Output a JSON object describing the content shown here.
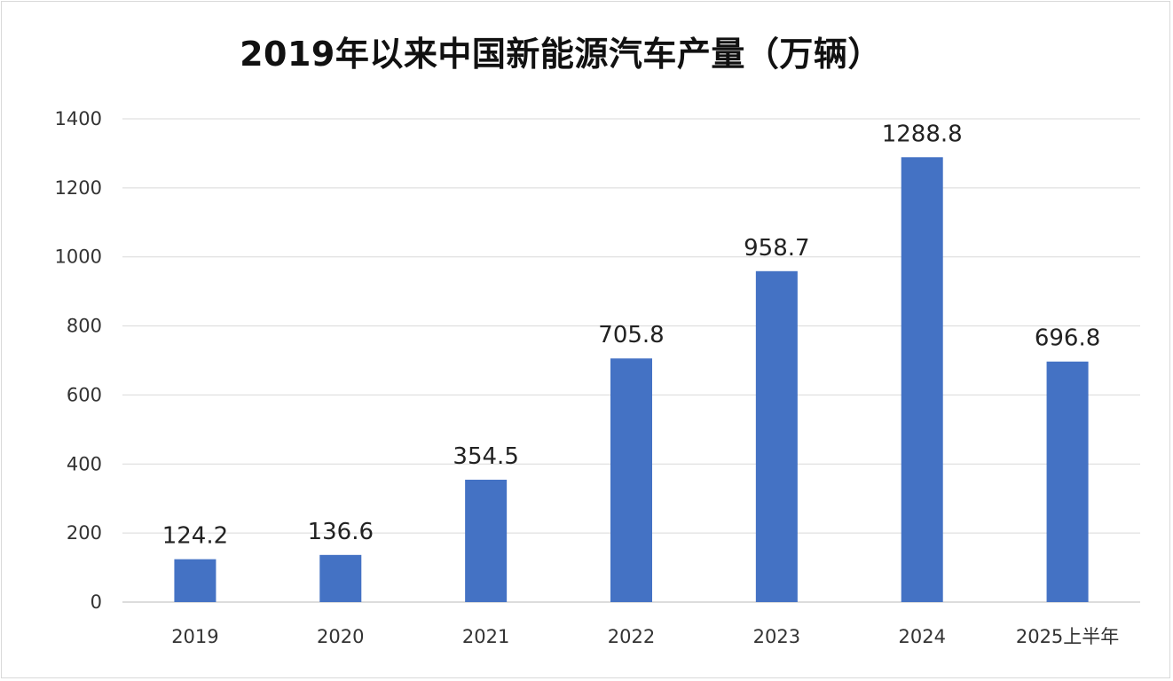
{
  "chart_data": {
    "type": "bar",
    "title": "2019年以来中国新能源汽车产量（万辆）",
    "categories": [
      "2019",
      "2020",
      "2021",
      "2022",
      "2023",
      "2024",
      "2025上半年"
    ],
    "values": [
      124.2,
      136.6,
      354.5,
      705.8,
      958.7,
      1288.8,
      696.8
    ],
    "data_labels": [
      "124.2",
      "136.6",
      "354.5",
      "705.8",
      "958.7",
      "1288.8",
      "696.8"
    ],
    "yticks": [
      "0",
      "200",
      "400",
      "600",
      "800",
      "1000",
      "1200",
      "1400"
    ],
    "ylim": [
      0,
      1400
    ],
    "grid": true,
    "legend": "none",
    "bar_color": "#4472c4",
    "grid_color": "#d9d9d9"
  }
}
